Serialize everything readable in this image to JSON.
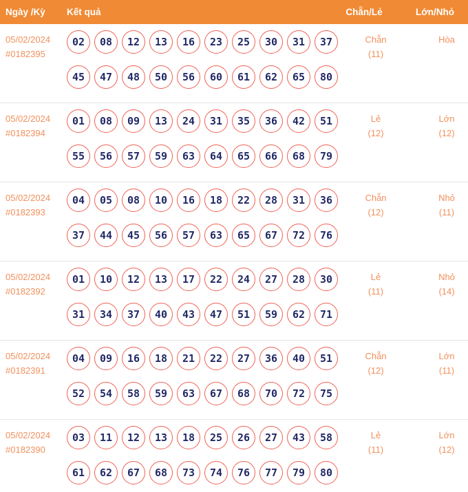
{
  "header": {
    "columns": {
      "date": "Ngày /Kỳ",
      "result": "Kết quả",
      "even_odd": "Chẵn/Lẻ",
      "big_small": "Lớn/Nhỏ"
    }
  },
  "colors": {
    "header_bg": "#F08A34",
    "header_text": "#FFFFFF",
    "accent_orange": "#F1905C",
    "ball_border": "#EE6154",
    "ball_text": "#222966",
    "divider": "#E5E5E5"
  },
  "rows": [
    {
      "date": "05/02/2024",
      "draw_id": "#0182395",
      "numbers_line1": [
        "02",
        "08",
        "12",
        "13",
        "16",
        "23",
        "25",
        "30",
        "31",
        "37"
      ],
      "numbers_line2": [
        "45",
        "47",
        "48",
        "50",
        "56",
        "60",
        "61",
        "62",
        "65",
        "80"
      ],
      "even_odd": "Chẵn",
      "even_odd_count": "(11)",
      "big_small": "Hòa",
      "big_small_count": ""
    },
    {
      "date": "05/02/2024",
      "draw_id": "#0182394",
      "numbers_line1": [
        "01",
        "08",
        "09",
        "13",
        "24",
        "31",
        "35",
        "36",
        "42",
        "51"
      ],
      "numbers_line2": [
        "55",
        "56",
        "57",
        "59",
        "63",
        "64",
        "65",
        "66",
        "68",
        "79"
      ],
      "even_odd": "Lẻ",
      "even_odd_count": "(12)",
      "big_small": "Lớn",
      "big_small_count": "(12)"
    },
    {
      "date": "05/02/2024",
      "draw_id": "#0182393",
      "numbers_line1": [
        "04",
        "05",
        "08",
        "10",
        "16",
        "18",
        "22",
        "28",
        "31",
        "36"
      ],
      "numbers_line2": [
        "37",
        "44",
        "45",
        "56",
        "57",
        "63",
        "65",
        "67",
        "72",
        "76"
      ],
      "even_odd": "Chẵn",
      "even_odd_count": "(12)",
      "big_small": "Nhỏ",
      "big_small_count": "(11)"
    },
    {
      "date": "05/02/2024",
      "draw_id": "#0182392",
      "numbers_line1": [
        "01",
        "10",
        "12",
        "13",
        "17",
        "22",
        "24",
        "27",
        "28",
        "30"
      ],
      "numbers_line2": [
        "31",
        "34",
        "37",
        "40",
        "43",
        "47",
        "51",
        "59",
        "62",
        "71"
      ],
      "even_odd": "Lẻ",
      "even_odd_count": "(11)",
      "big_small": "Nhỏ",
      "big_small_count": "(14)"
    },
    {
      "date": "05/02/2024",
      "draw_id": "#0182391",
      "numbers_line1": [
        "04",
        "09",
        "16",
        "18",
        "21",
        "22",
        "27",
        "36",
        "40",
        "51"
      ],
      "numbers_line2": [
        "52",
        "54",
        "58",
        "59",
        "63",
        "67",
        "68",
        "70",
        "72",
        "75"
      ],
      "even_odd": "Chẵn",
      "even_odd_count": "(12)",
      "big_small": "Lớn",
      "big_small_count": "(11)"
    },
    {
      "date": "05/02/2024",
      "draw_id": "#0182390",
      "numbers_line1": [
        "03",
        "11",
        "12",
        "13",
        "18",
        "25",
        "26",
        "27",
        "43",
        "58"
      ],
      "numbers_line2": [
        "61",
        "62",
        "67",
        "68",
        "73",
        "74",
        "76",
        "77",
        "79",
        "80"
      ],
      "even_odd": "Lẻ",
      "even_odd_count": "(11)",
      "big_small": "Lớn",
      "big_small_count": "(12)"
    }
  ]
}
